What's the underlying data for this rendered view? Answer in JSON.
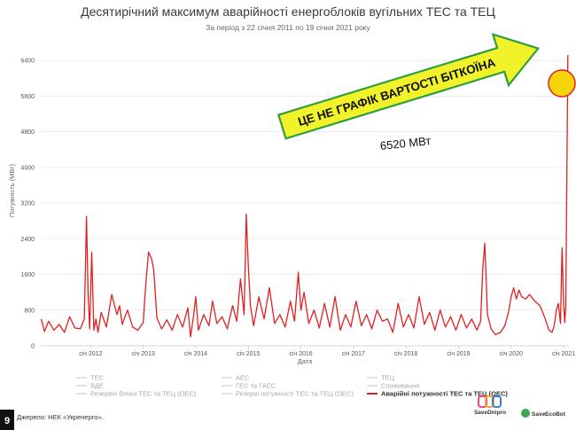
{
  "chart_data": {
    "type": "line",
    "title": "Десятирічний максимум аварійності енергоблоків вугільних ТЕС та ТЕЦ",
    "subtitle": "За період з 22 січня 2011 по 19 січня 2021 року",
    "xlabel": "Дата",
    "ylabel": "Потужність (МВт)",
    "ylim": [
      0,
      6800
    ],
    "xlim": [
      2011.05,
      2021.1
    ],
    "y_ticks": [
      "0",
      "800",
      "1600",
      "2400",
      "3200",
      "4000",
      "4800",
      "5600",
      "6400"
    ],
    "y_tick_values": [
      0,
      800,
      1600,
      2400,
      3200,
      4000,
      4800,
      5600,
      6400
    ],
    "x_ticks": [
      "січ 2012",
      "січ 2013",
      "січ 2014",
      "січ 2015",
      "січ 2016",
      "січ 2017",
      "січ 2018",
      "січ 2019",
      "січ 2020",
      "січ 2021"
    ],
    "x_tick_values": [
      2012.0,
      2013.0,
      2014.0,
      2015.0,
      2016.0,
      2017.0,
      2018.0,
      2019.0,
      2020.0,
      2021.0
    ],
    "grid": true,
    "legend_position": "bottom",
    "legend": [
      {
        "label": "ТЕС",
        "active": false
      },
      {
        "label": "АЕС",
        "active": false
      },
      {
        "label": "ТЕЦ",
        "active": false
      },
      {
        "label": "ВДЕ",
        "active": false
      },
      {
        "label": "ГЕС та ГАЕС",
        "active": false
      },
      {
        "label": "Споживання",
        "active": false
      },
      {
        "label": "Резервні блоки ТЕС та ТЕЦ (ОЕС)",
        "active": false
      },
      {
        "label": "Резерві потужності ТЕС та ТЕЦ (ОЕС)",
        "active": false
      },
      {
        "label": "Аварійні потужності ТЕС та ТЕЦ (ОЕС)",
        "active": true
      }
    ],
    "series": [
      {
        "name": "Аварійні потужності ТЕС та ТЕЦ (ОЕС)",
        "color": "#e02020",
        "x": [
          2011.06,
          2011.12,
          2011.2,
          2011.3,
          2011.4,
          2011.5,
          2011.6,
          2011.7,
          2011.8,
          2011.88,
          2011.92,
          2011.95,
          2011.98,
          2012.02,
          2012.06,
          2012.1,
          2012.14,
          2012.2,
          2012.3,
          2012.4,
          2012.5,
          2012.55,
          2012.6,
          2012.7,
          2012.8,
          2012.9,
          2013.0,
          2013.05,
          2013.1,
          2013.16,
          2013.2,
          2013.26,
          2013.35,
          2013.45,
          2013.55,
          2013.65,
          2013.75,
          2013.85,
          2013.9,
          2013.95,
          2014.0,
          2014.05,
          2014.15,
          2014.25,
          2014.32,
          2014.4,
          2014.5,
          2014.6,
          2014.7,
          2014.78,
          2014.85,
          2014.92,
          2014.96,
          2015.0,
          2015.04,
          2015.1,
          2015.2,
          2015.3,
          2015.4,
          2015.5,
          2015.6,
          2015.7,
          2015.8,
          2015.88,
          2015.95,
          2016.0,
          2016.06,
          2016.15,
          2016.25,
          2016.35,
          2016.45,
          2016.55,
          2016.65,
          2016.75,
          2016.85,
          2016.95,
          2017.05,
          2017.15,
          2017.25,
          2017.35,
          2017.45,
          2017.55,
          2017.65,
          2017.75,
          2017.85,
          2017.95,
          2018.05,
          2018.15,
          2018.25,
          2018.35,
          2018.45,
          2018.55,
          2018.65,
          2018.75,
          2018.85,
          2018.95,
          2019.05,
          2019.15,
          2019.25,
          2019.35,
          2019.42,
          2019.46,
          2019.5,
          2019.55,
          2019.62,
          2019.7,
          2019.8,
          2019.88,
          2019.95,
          2020.0,
          2020.05,
          2020.1,
          2020.15,
          2020.2,
          2020.28,
          2020.35,
          2020.45,
          2020.55,
          2020.65,
          2020.72,
          2020.78,
          2020.82,
          2020.86,
          2020.9,
          2020.94,
          2020.97,
          2021.0,
          2021.02,
          2021.04,
          2021.06,
          2021.08
        ],
        "y": [
          600,
          320,
          550,
          350,
          480,
          300,
          650,
          400,
          380,
          600,
          2900,
          1200,
          380,
          2100,
          350,
          600,
          300,
          750,
          420,
          1150,
          700,
          900,
          480,
          800,
          420,
          350,
          520,
          1400,
          2100,
          1950,
          1700,
          620,
          380,
          580,
          350,
          700,
          420,
          850,
          200,
          600,
          1100,
          350,
          700,
          450,
          1000,
          500,
          650,
          380,
          900,
          550,
          1500,
          700,
          2950,
          1800,
          900,
          450,
          1100,
          600,
          1300,
          500,
          700,
          420,
          1000,
          550,
          1650,
          800,
          1200,
          500,
          800,
          400,
          950,
          420,
          1100,
          350,
          700,
          420,
          1000,
          450,
          700,
          380,
          800,
          550,
          600,
          300,
          950,
          420,
          700,
          400,
          1100,
          480,
          750,
          350,
          800,
          420,
          650,
          350,
          700,
          400,
          600,
          350,
          550,
          1700,
          2300,
          700,
          380,
          250,
          300,
          450,
          750,
          1100,
          1300,
          1050,
          1250,
          1100,
          1050,
          1150,
          1000,
          900,
          600,
          350,
          300,
          450,
          800,
          950,
          500,
          2200,
          900,
          520,
          850,
          3600,
          6520
        ]
      }
    ],
    "annotations": {
      "callout": "ЦЕ НЕ ГРАФІК ВАРТОСТІ БІТКОЇНА",
      "value_label": "6520 МВт"
    }
  },
  "footer": {
    "source": "Джерело: НЕК «Укренерго».",
    "page_number": "9",
    "brand_left": "SaveDnipro",
    "brand_right": "SaveEcoBot"
  },
  "colors": {
    "series": "#e02020",
    "callout_fill": "#f2f22a",
    "arrow_stroke": "#2e9e3e",
    "circle_fill": "#f5d40a"
  }
}
